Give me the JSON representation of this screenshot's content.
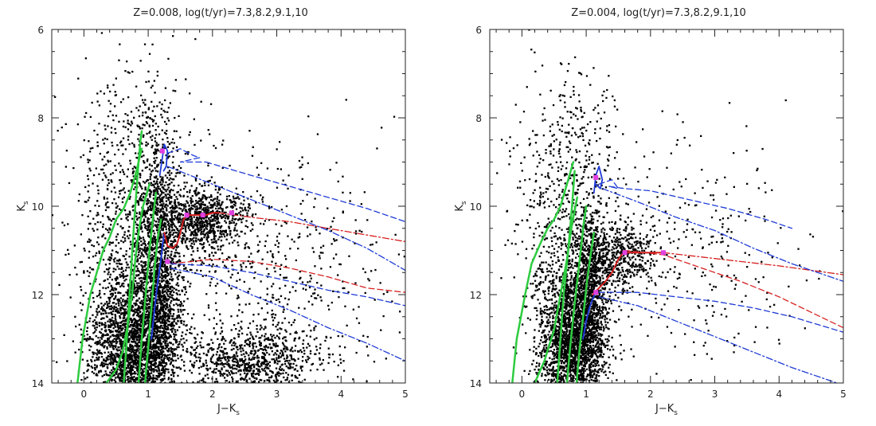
{
  "chart_data": [
    {
      "type": "scatter",
      "title": "Z=0.008,  log(t/yr)=7.3,8.2,9.1,10",
      "xlabel": "J−K",
      "xlabel_sub": "s",
      "ylabel": "K",
      "ylabel_sub": "s",
      "xlim": [
        -0.5,
        5
      ],
      "ylim": [
        14,
        6
      ],
      "y_inverted": true,
      "xticks": [
        "0",
        "1",
        "2",
        "3",
        "4",
        "5"
      ],
      "yticks": [
        "6",
        "8",
        "10",
        "12",
        "14"
      ],
      "colors": {
        "points": "#000000",
        "green": "#2ecc40",
        "blue": "#1f3bd6",
        "red": "#d62020",
        "magenta": "#e040e0"
      },
      "scatter_regions": [
        {
          "cx": 0.8,
          "cy": 13.2,
          "sx": 0.35,
          "sy": 0.9,
          "n": 2600
        },
        {
          "cx": 1.15,
          "cy": 11.5,
          "sx": 0.18,
          "sy": 1.4,
          "n": 1500
        },
        {
          "cx": 1.85,
          "cy": 10.3,
          "sx": 0.35,
          "sy": 0.35,
          "n": 800
        },
        {
          "cx": 2.6,
          "cy": 13.5,
          "sx": 0.55,
          "sy": 0.4,
          "n": 900
        },
        {
          "cx": 0.6,
          "cy": 10.5,
          "sx": 0.4,
          "sy": 1.5,
          "n": 600
        },
        {
          "cx": 1.0,
          "cy": 8.5,
          "sx": 0.4,
          "sy": 0.8,
          "n": 180
        },
        {
          "cx": 2.8,
          "cy": 11.2,
          "sx": 1.0,
          "sy": 1.2,
          "n": 500
        }
      ],
      "series": [
        {
          "color": "green",
          "style": "solid",
          "width": 2.5,
          "x": [
            -0.1,
            -0.02,
            0.1,
            0.2,
            0.3,
            0.4,
            0.5,
            0.62,
            0.72,
            0.8,
            0.85,
            0.9
          ],
          "y": [
            14,
            13.0,
            12.0,
            11.5,
            11.0,
            10.7,
            10.3,
            10.05,
            9.7,
            9.3,
            9.0,
            8.7
          ]
        },
        {
          "color": "green",
          "style": "solid",
          "width": 2.5,
          "x": [
            0.62,
            0.66,
            0.7,
            0.74,
            0.78,
            0.82,
            0.85,
            0.88,
            0.9
          ],
          "y": [
            14,
            13.2,
            12.2,
            11.3,
            10.4,
            9.6,
            9.0,
            8.5,
            8.3
          ]
        },
        {
          "color": "green",
          "style": "solid",
          "width": 2.5,
          "x": [
            0.35,
            0.5,
            0.6,
            0.68,
            0.75,
            0.8,
            0.86,
            0.92,
            0.98,
            1.02
          ],
          "y": [
            14,
            13.7,
            13.3,
            12.7,
            12.0,
            11.2,
            10.5,
            10.0,
            9.7,
            9.5
          ]
        },
        {
          "color": "green",
          "style": "solid",
          "width": 2.5,
          "x": [
            0.85,
            0.9,
            0.96,
            1.02,
            1.08,
            1.12
          ],
          "y": [
            14,
            13.0,
            12.0,
            11.0,
            10.2,
            9.7
          ]
        },
        {
          "color": "green",
          "style": "solid",
          "width": 2.5,
          "x": [
            0.95,
            1.0,
            1.05,
            1.1,
            1.15,
            1.2
          ],
          "y": [
            14,
            13.2,
            12.3,
            11.4,
            10.7,
            10.3
          ]
        },
        {
          "color": "blue",
          "style": "solid",
          "width": 2,
          "x": [
            1.05,
            1.1,
            1.15,
            1.2,
            1.22,
            1.25
          ],
          "y": [
            13.0,
            12.3,
            11.7,
            11.2,
            10.9,
            10.6
          ]
        },
        {
          "color": "blue",
          "style": "solid",
          "width": 1.8,
          "x": [
            1.18,
            1.22,
            1.25,
            1.3,
            1.28,
            1.24
          ],
          "y": [
            9.3,
            8.9,
            8.6,
            8.75,
            9.1,
            9.2
          ]
        },
        {
          "color": "red",
          "style": "solid",
          "width": 2,
          "x": [
            1.25,
            1.3,
            1.38,
            1.45,
            1.5,
            1.55,
            1.6,
            1.75,
            1.9,
            2.0,
            2.1
          ],
          "y": [
            10.6,
            10.9,
            10.95,
            10.85,
            10.6,
            10.3,
            10.2,
            10.2,
            10.2,
            10.15,
            10.15
          ]
        },
        {
          "color": "red",
          "style": "dashdot",
          "width": 1.3,
          "x": [
            2.1,
            2.6,
            3.2,
            3.8,
            4.4,
            5.0
          ],
          "y": [
            10.15,
            10.25,
            10.35,
            10.5,
            10.65,
            10.8
          ]
        },
        {
          "color": "red",
          "style": "dashed",
          "width": 1.3,
          "x": [
            1.35,
            2.0,
            2.6,
            3.2,
            3.8,
            4.4,
            5.0
          ],
          "y": [
            11.3,
            11.2,
            11.25,
            11.4,
            11.6,
            11.85,
            11.95
          ]
        },
        {
          "color": "blue",
          "style": "dashed",
          "width": 1.3,
          "x": [
            1.3,
            1.5,
            1.7,
            1.8,
            1.65,
            1.5,
            1.9
          ],
          "y": [
            8.8,
            8.7,
            8.85,
            8.9,
            8.95,
            9.0,
            9.0
          ]
        },
        {
          "color": "blue",
          "style": "dashed",
          "width": 1.3,
          "x": [
            1.9,
            2.6,
            3.2,
            3.8,
            4.4,
            5.0
          ],
          "y": [
            9.0,
            9.3,
            9.55,
            9.8,
            10.05,
            10.35
          ]
        },
        {
          "color": "blue",
          "style": "dashdot",
          "width": 1.3,
          "x": [
            1.3,
            2.0,
            2.6,
            3.2,
            3.8,
            4.4,
            5.0
          ],
          "y": [
            9.1,
            9.5,
            9.85,
            10.2,
            10.55,
            10.95,
            11.45
          ]
        },
        {
          "color": "blue",
          "style": "dashed",
          "width": 1.3,
          "x": [
            1.35,
            2.0,
            2.6,
            3.2,
            3.8,
            4.4,
            5.0
          ],
          "y": [
            11.3,
            11.35,
            11.5,
            11.7,
            11.9,
            12.05,
            12.25
          ]
        },
        {
          "color": "blue",
          "style": "dashdot",
          "width": 1.3,
          "x": [
            1.35,
            2.0,
            2.6,
            3.2,
            3.8,
            4.4,
            5.0
          ],
          "y": [
            11.4,
            11.6,
            12.0,
            12.35,
            12.75,
            13.1,
            13.5
          ]
        }
      ],
      "markers": [
        {
          "x": 1.22,
          "y": 8.75,
          "color": "magenta"
        },
        {
          "x": 1.6,
          "y": 10.2,
          "color": "magenta"
        },
        {
          "x": 1.85,
          "y": 10.2,
          "color": "magenta"
        },
        {
          "x": 2.3,
          "y": 10.15,
          "color": "magenta"
        },
        {
          "x": 1.3,
          "y": 11.25,
          "color": "magenta"
        }
      ]
    },
    {
      "type": "scatter",
      "title": "Z=0.004,  log(t/yr)=7.3,8.2,9.1,10",
      "xlabel": "J−K",
      "xlabel_sub": "s",
      "ylabel": "K",
      "ylabel_sub": "s",
      "xlim": [
        -0.5,
        5
      ],
      "ylim": [
        14,
        6
      ],
      "y_inverted": true,
      "xticks": [
        "0",
        "1",
        "2",
        "3",
        "4",
        "5"
      ],
      "yticks": [
        "6",
        "8",
        "10",
        "12",
        "14"
      ],
      "colors": {
        "points": "#000000",
        "green": "#2ecc40",
        "blue": "#1f3bd6",
        "red": "#d62020",
        "magenta": "#e040e0"
      },
      "scatter_regions": [
        {
          "cx": 0.75,
          "cy": 13.2,
          "sx": 0.25,
          "sy": 0.9,
          "n": 2200
        },
        {
          "cx": 1.05,
          "cy": 12.0,
          "sx": 0.15,
          "sy": 1.0,
          "n": 1100
        },
        {
          "cx": 1.5,
          "cy": 11.1,
          "sx": 0.3,
          "sy": 0.4,
          "n": 500
        },
        {
          "cx": 0.6,
          "cy": 10.5,
          "sx": 0.35,
          "sy": 1.6,
          "n": 550
        },
        {
          "cx": 0.95,
          "cy": 8.8,
          "sx": 0.35,
          "sy": 1.0,
          "n": 160
        },
        {
          "cx": 2.6,
          "cy": 11.0,
          "sx": 1.0,
          "sy": 1.3,
          "n": 300
        }
      ],
      "series": [
        {
          "color": "green",
          "style": "solid",
          "width": 2.5,
          "x": [
            -0.15,
            -0.08,
            0.05,
            0.15,
            0.3,
            0.4,
            0.5,
            0.6,
            0.7,
            0.8
          ],
          "y": [
            14,
            13.0,
            12.0,
            11.3,
            10.8,
            10.5,
            10.3,
            10.0,
            9.5,
            9.0
          ]
        },
        {
          "color": "green",
          "style": "solid",
          "width": 2.5,
          "x": [
            0.55,
            0.6,
            0.65,
            0.72,
            0.78,
            0.82
          ],
          "y": [
            14,
            13.0,
            12.0,
            11.0,
            10.0,
            9.2
          ]
        },
        {
          "color": "green",
          "style": "solid",
          "width": 2.5,
          "x": [
            0.2,
            0.35,
            0.5,
            0.6,
            0.7,
            0.78,
            0.86
          ],
          "y": [
            14,
            13.5,
            12.8,
            12.0,
            11.2,
            10.4,
            9.8
          ]
        },
        {
          "color": "green",
          "style": "solid",
          "width": 2.5,
          "x": [
            0.7,
            0.75,
            0.82,
            0.9,
            0.96,
            1.0
          ],
          "y": [
            14,
            13.2,
            12.2,
            11.2,
            10.4,
            10.0
          ]
        },
        {
          "color": "green",
          "style": "solid",
          "width": 2.5,
          "x": [
            0.85,
            0.9,
            0.96,
            1.02,
            1.08,
            1.12
          ],
          "y": [
            14,
            13.2,
            12.4,
            11.6,
            11.0,
            10.6
          ]
        },
        {
          "color": "blue",
          "style": "solid",
          "width": 2,
          "x": [
            0.95,
            1.0,
            1.05,
            1.1,
            1.15
          ],
          "y": [
            13.0,
            12.6,
            12.3,
            12.1,
            11.95
          ]
        },
        {
          "color": "blue",
          "style": "solid",
          "width": 1.8,
          "x": [
            1.12,
            1.15,
            1.2,
            1.25,
            1.22,
            1.15
          ],
          "y": [
            9.7,
            9.3,
            9.1,
            9.4,
            9.6,
            9.5
          ]
        },
        {
          "color": "red",
          "style": "solid",
          "width": 2,
          "x": [
            1.1,
            1.2,
            1.3,
            1.4,
            1.5,
            1.55,
            1.6,
            1.8,
            2.0,
            2.2
          ],
          "y": [
            12.0,
            11.85,
            11.7,
            11.5,
            11.2,
            11.1,
            11.05,
            11.05,
            11.05,
            11.05
          ]
        },
        {
          "color": "red",
          "style": "dashdot",
          "width": 1.3,
          "x": [
            2.2,
            2.8,
            3.4,
            4.0,
            4.5,
            5.0
          ],
          "y": [
            11.05,
            11.15,
            11.25,
            11.35,
            11.45,
            11.55
          ]
        },
        {
          "color": "red",
          "style": "dashed",
          "width": 1.3,
          "x": [
            1.6,
            2.2,
            2.8,
            3.4,
            4.0,
            4.5,
            5.0
          ],
          "y": [
            11.0,
            11.1,
            11.4,
            11.7,
            12.05,
            12.4,
            12.75
          ]
        },
        {
          "color": "blue",
          "style": "dashed",
          "width": 1.3,
          "x": [
            1.2,
            1.4,
            1.5,
            1.35,
            1.6,
            2.0,
            2.6,
            3.2,
            3.8,
            4.2
          ],
          "y": [
            9.5,
            9.4,
            9.6,
            9.55,
            9.6,
            9.65,
            9.85,
            10.05,
            10.3,
            10.5
          ]
        },
        {
          "color": "blue",
          "style": "dashdot",
          "width": 1.3,
          "x": [
            1.25,
            1.8,
            2.4,
            3.0,
            3.6,
            4.2,
            5.0
          ],
          "y": [
            9.6,
            9.9,
            10.25,
            10.55,
            10.95,
            11.3,
            11.7
          ]
        },
        {
          "color": "blue",
          "style": "dashed",
          "width": 1.3,
          "x": [
            1.2,
            1.8,
            2.4,
            3.0,
            3.6,
            4.2,
            5.0
          ],
          "y": [
            11.95,
            11.95,
            12.05,
            12.15,
            12.3,
            12.5,
            12.85
          ]
        },
        {
          "color": "blue",
          "style": "dashdot",
          "width": 1.3,
          "x": [
            1.2,
            1.8,
            2.4,
            3.0,
            3.6,
            4.2,
            4.9
          ],
          "y": [
            12.05,
            12.25,
            12.6,
            12.95,
            13.3,
            13.65,
            14.0
          ]
        }
      ],
      "markers": [
        {
          "x": 1.15,
          "y": 9.35,
          "color": "magenta"
        },
        {
          "x": 1.6,
          "y": 11.05,
          "color": "magenta"
        },
        {
          "x": 2.2,
          "y": 11.05,
          "color": "magenta"
        },
        {
          "x": 1.15,
          "y": 11.95,
          "color": "magenta"
        }
      ]
    }
  ]
}
